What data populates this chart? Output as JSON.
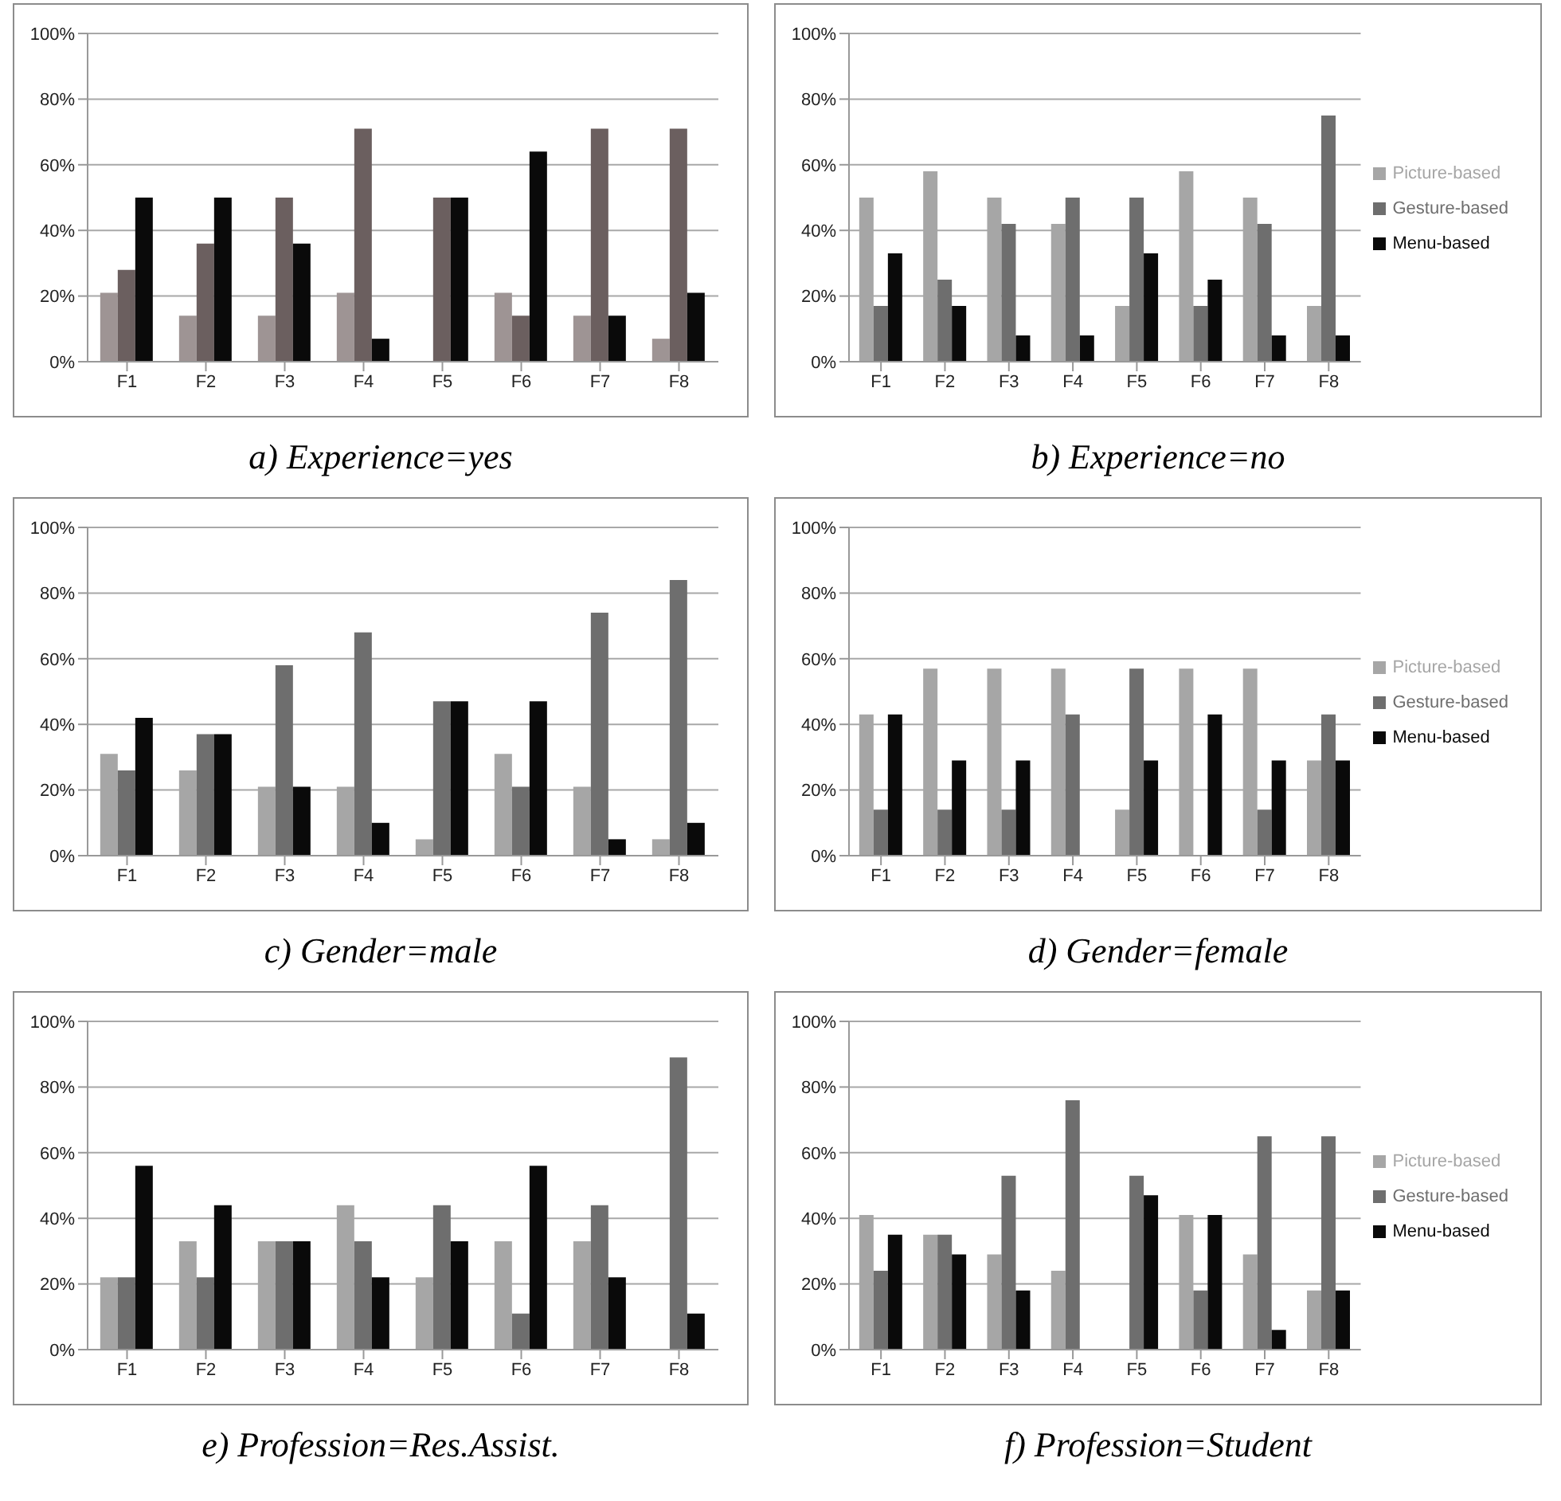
{
  "chart_data": [
    {
      "type": "bar",
      "title": "a) Experience=yes",
      "categories": [
        "F1",
        "F2",
        "F3",
        "F4",
        "F5",
        "F6",
        "F7",
        "F8"
      ],
      "series": [
        {
          "color": "#9e9494",
          "values": [
            21,
            14,
            14,
            21,
            0,
            21,
            14,
            7
          ]
        },
        {
          "color": "#6b5f5f",
          "values": [
            28,
            36,
            50,
            71,
            50,
            14,
            71,
            71
          ]
        },
        {
          "color": "#0a0a0a",
          "values": [
            50,
            50,
            36,
            7,
            50,
            64,
            14,
            21
          ]
        }
      ],
      "ylim": [
        0,
        100
      ],
      "yticks": [
        {
          "value": 0,
          "label": "0%"
        },
        {
          "value": 20,
          "label": "20%"
        },
        {
          "value": 40,
          "label": "40%"
        },
        {
          "value": 60,
          "label": "60%"
        },
        {
          "value": 80,
          "label": "80%"
        },
        {
          "value": 100,
          "label": "100%"
        }
      ],
      "grid": "y",
      "legend": false
    },
    {
      "type": "bar",
      "title": "b) Experience=no",
      "categories": [
        "F1",
        "F2",
        "F3",
        "F4",
        "F5",
        "F6",
        "F7",
        "F8"
      ],
      "series": [
        {
          "name": "Picture-based",
          "color": "#a6a6a6",
          "values": [
            50,
            58,
            50,
            42,
            17,
            58,
            50,
            17
          ]
        },
        {
          "name": "Gesture-based",
          "color": "#6e6e6e",
          "values": [
            17,
            25,
            42,
            50,
            50,
            17,
            42,
            75
          ]
        },
        {
          "name": "Menu-based",
          "color": "#0a0a0a",
          "values": [
            33,
            17,
            8,
            8,
            33,
            25,
            8,
            8
          ]
        }
      ],
      "ylim": [
        0,
        100
      ],
      "yticks": [
        {
          "value": 0,
          "label": "0%"
        },
        {
          "value": 20,
          "label": "20%"
        },
        {
          "value": 40,
          "label": "40%"
        },
        {
          "value": 60,
          "label": "60%"
        },
        {
          "value": 80,
          "label": "80%"
        },
        {
          "value": 100,
          "label": "100%"
        }
      ],
      "grid": "y",
      "legend": "right"
    },
    {
      "type": "bar",
      "title": "c) Gender=male",
      "categories": [
        "F1",
        "F2",
        "F3",
        "F4",
        "F5",
        "F6",
        "F7",
        "F8"
      ],
      "series": [
        {
          "color": "#a6a6a6",
          "values": [
            31,
            26,
            21,
            21,
            5,
            31,
            21,
            5
          ]
        },
        {
          "color": "#6e6e6e",
          "values": [
            26,
            37,
            58,
            68,
            47,
            21,
            74,
            84
          ]
        },
        {
          "color": "#0a0a0a",
          "values": [
            42,
            37,
            21,
            10,
            47,
            47,
            5,
            10
          ]
        }
      ],
      "ylim": [
        0,
        100
      ],
      "yticks": [
        {
          "value": 0,
          "label": "0%"
        },
        {
          "value": 20,
          "label": "20%"
        },
        {
          "value": 40,
          "label": "40%"
        },
        {
          "value": 60,
          "label": "60%"
        },
        {
          "value": 80,
          "label": "80%"
        },
        {
          "value": 100,
          "label": "100%"
        }
      ],
      "grid": "y",
      "legend": false
    },
    {
      "type": "bar",
      "title": "d) Gender=female",
      "categories": [
        "F1",
        "F2",
        "F3",
        "F4",
        "F5",
        "F6",
        "F7",
        "F8"
      ],
      "series": [
        {
          "name": "Picture-based",
          "color": "#a6a6a6",
          "values": [
            43,
            57,
            57,
            57,
            14,
            57,
            57,
            29
          ]
        },
        {
          "name": "Gesture-based",
          "color": "#6e6e6e",
          "values": [
            14,
            14,
            14,
            43,
            57,
            0,
            14,
            43
          ]
        },
        {
          "name": "Menu-based",
          "color": "#0a0a0a",
          "values": [
            43,
            29,
            29,
            0,
            29,
            43,
            29,
            29
          ]
        }
      ],
      "ylim": [
        0,
        100
      ],
      "yticks": [
        {
          "value": 0,
          "label": "0%"
        },
        {
          "value": 20,
          "label": "20%"
        },
        {
          "value": 40,
          "label": "40%"
        },
        {
          "value": 60,
          "label": "60%"
        },
        {
          "value": 80,
          "label": "80%"
        },
        {
          "value": 100,
          "label": "100%"
        }
      ],
      "grid": "y",
      "legend": "right"
    },
    {
      "type": "bar",
      "title": "e) Profession=Res.Assist.",
      "categories": [
        "F1",
        "F2",
        "F3",
        "F4",
        "F5",
        "F6",
        "F7",
        "F8"
      ],
      "series": [
        {
          "color": "#a6a6a6",
          "values": [
            22,
            33,
            33,
            44,
            22,
            33,
            33,
            0
          ]
        },
        {
          "color": "#6e6e6e",
          "values": [
            22,
            22,
            33,
            33,
            44,
            11,
            44,
            89
          ]
        },
        {
          "color": "#0a0a0a",
          "values": [
            56,
            44,
            33,
            22,
            33,
            56,
            22,
            11
          ]
        }
      ],
      "ylim": [
        0,
        100
      ],
      "yticks": [
        {
          "value": 0,
          "label": "0%"
        },
        {
          "value": 20,
          "label": "20%"
        },
        {
          "value": 40,
          "label": "40%"
        },
        {
          "value": 60,
          "label": "60%"
        },
        {
          "value": 80,
          "label": "80%"
        },
        {
          "value": 100,
          "label": "100%"
        }
      ],
      "grid": "y",
      "legend": false
    },
    {
      "type": "bar",
      "title": "f) Profession=Student",
      "categories": [
        "F1",
        "F2",
        "F3",
        "F4",
        "F5",
        "F6",
        "F7",
        "F8"
      ],
      "series": [
        {
          "name": "Picture-based",
          "color": "#a6a6a6",
          "values": [
            41,
            35,
            29,
            24,
            0,
            41,
            29,
            18
          ]
        },
        {
          "name": "Gesture-based",
          "color": "#6e6e6e",
          "values": [
            24,
            35,
            53,
            76,
            53,
            18,
            65,
            65
          ]
        },
        {
          "name": "Menu-based",
          "color": "#0a0a0a",
          "values": [
            35,
            29,
            18,
            0,
            47,
            41,
            6,
            18
          ]
        }
      ],
      "ylim": [
        0,
        100
      ],
      "yticks": [
        {
          "value": 0,
          "label": "0%"
        },
        {
          "value": 20,
          "label": "20%"
        },
        {
          "value": 40,
          "label": "40%"
        },
        {
          "value": 60,
          "label": "60%"
        },
        {
          "value": 80,
          "label": "80%"
        },
        {
          "value": 100,
          "label": "100%"
        }
      ],
      "grid": "y",
      "legend": "right"
    }
  ]
}
